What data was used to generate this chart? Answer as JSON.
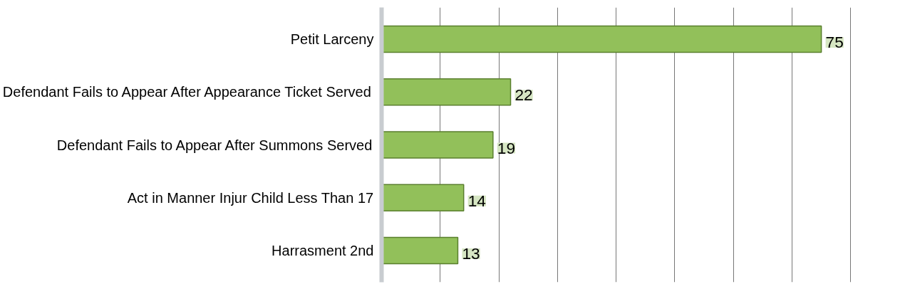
{
  "chart_data": {
    "type": "bar",
    "orientation": "horizontal",
    "categories": [
      "Petit Larceny",
      "Defendant Fails to Appear After Appearance Ticket Served",
      "Defendant Fails to Appear After Summons Served",
      "Act in Manner Injur Child Less Than 17",
      "Harrasment 2nd"
    ],
    "values": [
      75,
      22,
      19,
      14,
      13
    ],
    "color": "#92c05a",
    "data_labels": true,
    "grid": "x",
    "tick_labels": "y"
  }
}
